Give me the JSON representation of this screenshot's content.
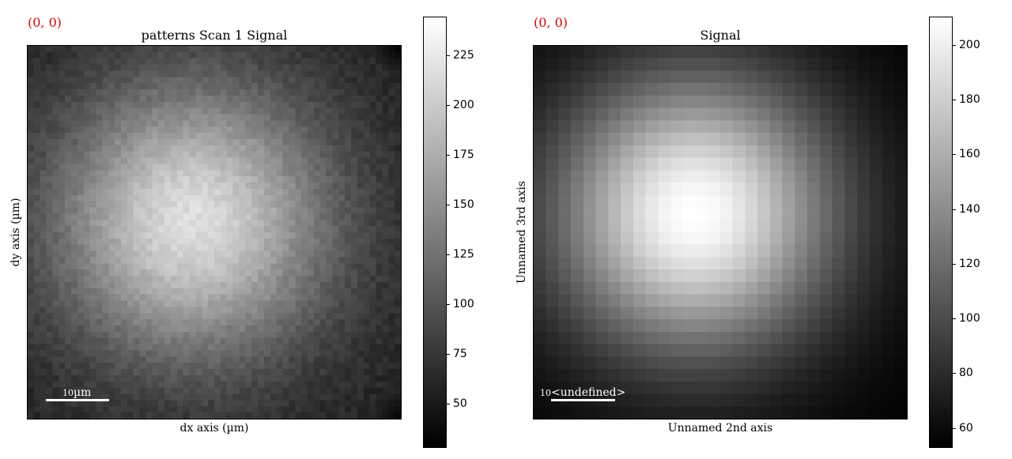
{
  "chart_data": [
    {
      "type": "heatmap",
      "title": "patterns Scan 1 Signal",
      "xlabel": "dx axis (µm)",
      "ylabel": "dy axis (µm)",
      "coordinate_readout": "(0, 0)",
      "colormap": "gray",
      "colorbar": {
        "range": [
          28,
          244
        ],
        "ticks": [
          "50",
          "75",
          "100",
          "125",
          "150",
          "175",
          "200",
          "225"
        ],
        "tick_values": [
          50,
          75,
          100,
          125,
          150,
          175,
          200,
          225
        ]
      },
      "scalebar": {
        "value": "10",
        "unit": "µm"
      },
      "grid_size": [
        60,
        60
      ],
      "intensity": {
        "peak": 215,
        "baseline": 55,
        "center_x": 0.44,
        "center_y": 0.47,
        "noise": 8,
        "corner_dark": [
          {
            "corner": "top-right",
            "value": 28
          },
          {
            "corner": "bottom-right",
            "value": 30
          }
        ]
      }
    },
    {
      "type": "heatmap",
      "title": "Signal",
      "xlabel": "Unnamed 2nd axis",
      "ylabel": "Unnamed 3rd axis",
      "coordinate_readout": "(0, 0)",
      "colormap": "gray",
      "colorbar": {
        "range": [
          53,
          210
        ],
        "ticks": [
          "60",
          "80",
          "100",
          "120",
          "140",
          "160",
          "180",
          "200"
        ],
        "tick_values": [
          60,
          80,
          100,
          120,
          140,
          160,
          180,
          200
        ]
      },
      "scalebar": {
        "value": "10",
        "unit": "<undefined>"
      },
      "grid_size": [
        30,
        30
      ],
      "intensity": {
        "peak": 210,
        "baseline": 53,
        "center_x": 0.43,
        "center_y": 0.45,
        "noise": 0
      }
    }
  ]
}
